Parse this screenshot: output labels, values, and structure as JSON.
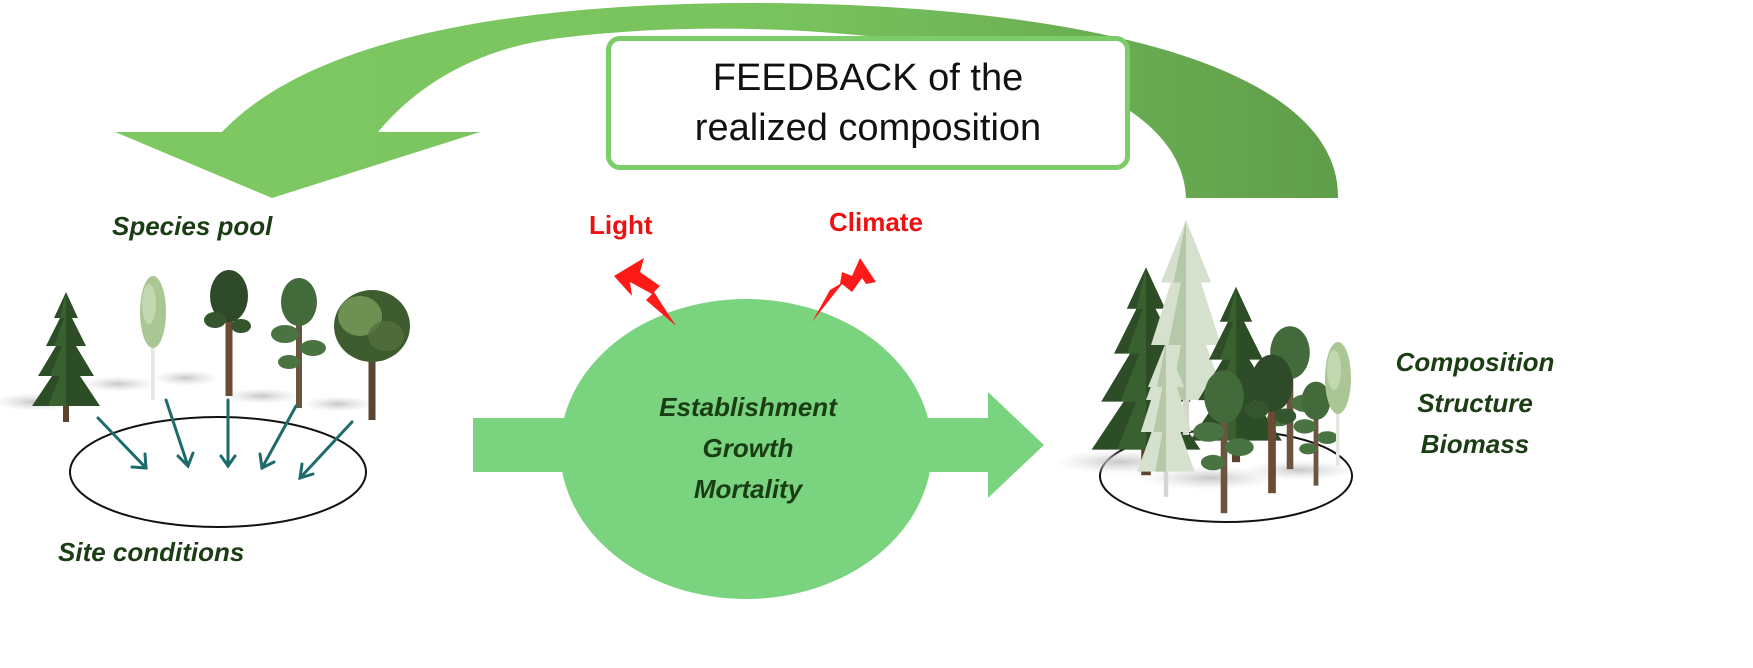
{
  "colors": {
    "arrow_light": "#7ec963",
    "arrow_dark": "#5f9d4a",
    "ellipse_fill": "#7ad37f",
    "main_arrow": "#7ad37f",
    "box_border": "#7dcc6a",
    "label_dark_green": "#1b3d14",
    "label_red": "#ee1111",
    "small_arrows": "#1e6b6b",
    "lightning": "#ff1a1a"
  },
  "feedback": {
    "line1": "FEEDBACK of the",
    "line2": "realized composition"
  },
  "species_pool": {
    "label": "Species pool"
  },
  "site_conditions": {
    "label": "Site conditions"
  },
  "drivers": {
    "light": "Light",
    "climate": "Climate"
  },
  "processes": {
    "items": [
      "Establishment",
      "Growth",
      "Mortality"
    ]
  },
  "outputs": {
    "items": [
      "Composition",
      "Structure",
      "Biomass"
    ]
  },
  "icons": {
    "trees": "conifer-tree-icon",
    "lightning": "lightning-bolt-icon",
    "arrows": "arrow-icon"
  }
}
